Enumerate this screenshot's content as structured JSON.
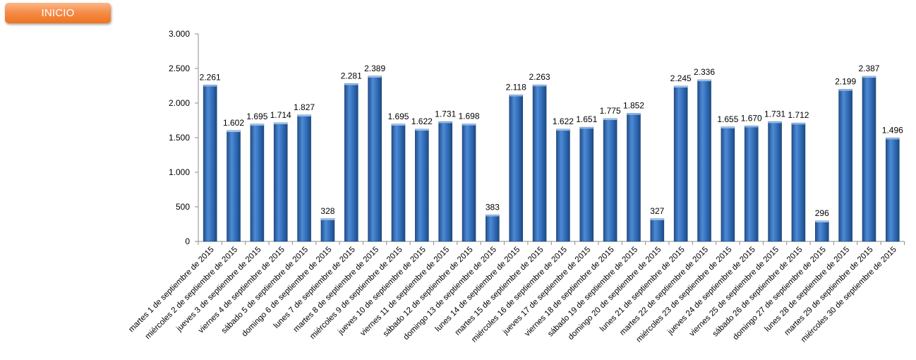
{
  "nav": {
    "inicio_label": "INICIO"
  },
  "colors": {
    "bar": "#2f6db5",
    "bar_dark": "#1f4f8c",
    "bar_light": "#8fb3e0",
    "button": "#f58d4a"
  },
  "chart_data": {
    "type": "bar",
    "categories": [
      "martes 1 de septiembre de 2015",
      "miércoles 2 de septiembre de 2015",
      "jueves 3 de septiembre de 2015",
      "viernes 4 de septiembre de 2015",
      "sábado 5 de septiembre de 2015",
      "domingo 6 de septiembre de 2015",
      "lunes 7 de septiembre de 2015",
      "martes 8 de septiembre de 2015",
      "miércoles 9 de septiembre de 2015",
      "jueves 10 de septiembre de 2015",
      "viernes 11 de septiembre de 2015",
      "sábado 12 de septiembre de 2015",
      "domingo 13 de septiembre de 2015",
      "lunes 14 de septiembre de 2015",
      "martes 15 de septiembre de 2015",
      "miércoles 16 de septiembre de 2015",
      "jueves 17 de septiembre de 2015",
      "viernes 18 de septiembre de 2015",
      "sábado 19 de septiembre de 2015",
      "domingo 20 de septiembre de 2015",
      "lunes 21 de septiembre de 2015",
      "martes 22 de septiembre de 2015",
      "miércoles 23 de septiembre de 2015",
      "jueves 24 de septiembre de 2015",
      "viernes 25 de septiembre de 2015",
      "sábado 26 de septiembre de 2015",
      "domingo 27 de septiembre de 2015",
      "lunes 28 de septiembre de 2015",
      "martes 29 de septiembre de 2015",
      "miércoles 30 de septiembre de 2015"
    ],
    "values": [
      2261,
      1602,
      1695,
      1714,
      1827,
      328,
      2281,
      2389,
      1695,
      1622,
      1731,
      1698,
      383,
      2118,
      2263,
      1622,
      1651,
      1775,
      1852,
      327,
      2245,
      2336,
      1655,
      1670,
      1731,
      1712,
      296,
      2199,
      2387,
      1496
    ],
    "value_labels": [
      "2.261",
      "1.602",
      "1.695",
      "1.714",
      "1.827",
      "328",
      "2.281",
      "2.389",
      "1.695",
      "1.622",
      "1.731",
      "1.698",
      "383",
      "2.118",
      "2.263",
      "1.622",
      "1.651",
      "1.775",
      "1.852",
      "327",
      "2.245",
      "2.336",
      "1.655",
      "1.670",
      "1.731",
      "1.712",
      "296",
      "2.199",
      "2.387",
      "1.496"
    ],
    "ylim": [
      0,
      3000
    ],
    "yticks": [
      0,
      500,
      1000,
      1500,
      2000,
      2500,
      3000
    ],
    "ytick_labels": [
      "0",
      "500",
      "1.000",
      "1.500",
      "2.000",
      "2.500",
      "3.000"
    ],
    "grid": false,
    "legend": "none",
    "title": "",
    "xlabel": "",
    "ylabel": ""
  }
}
